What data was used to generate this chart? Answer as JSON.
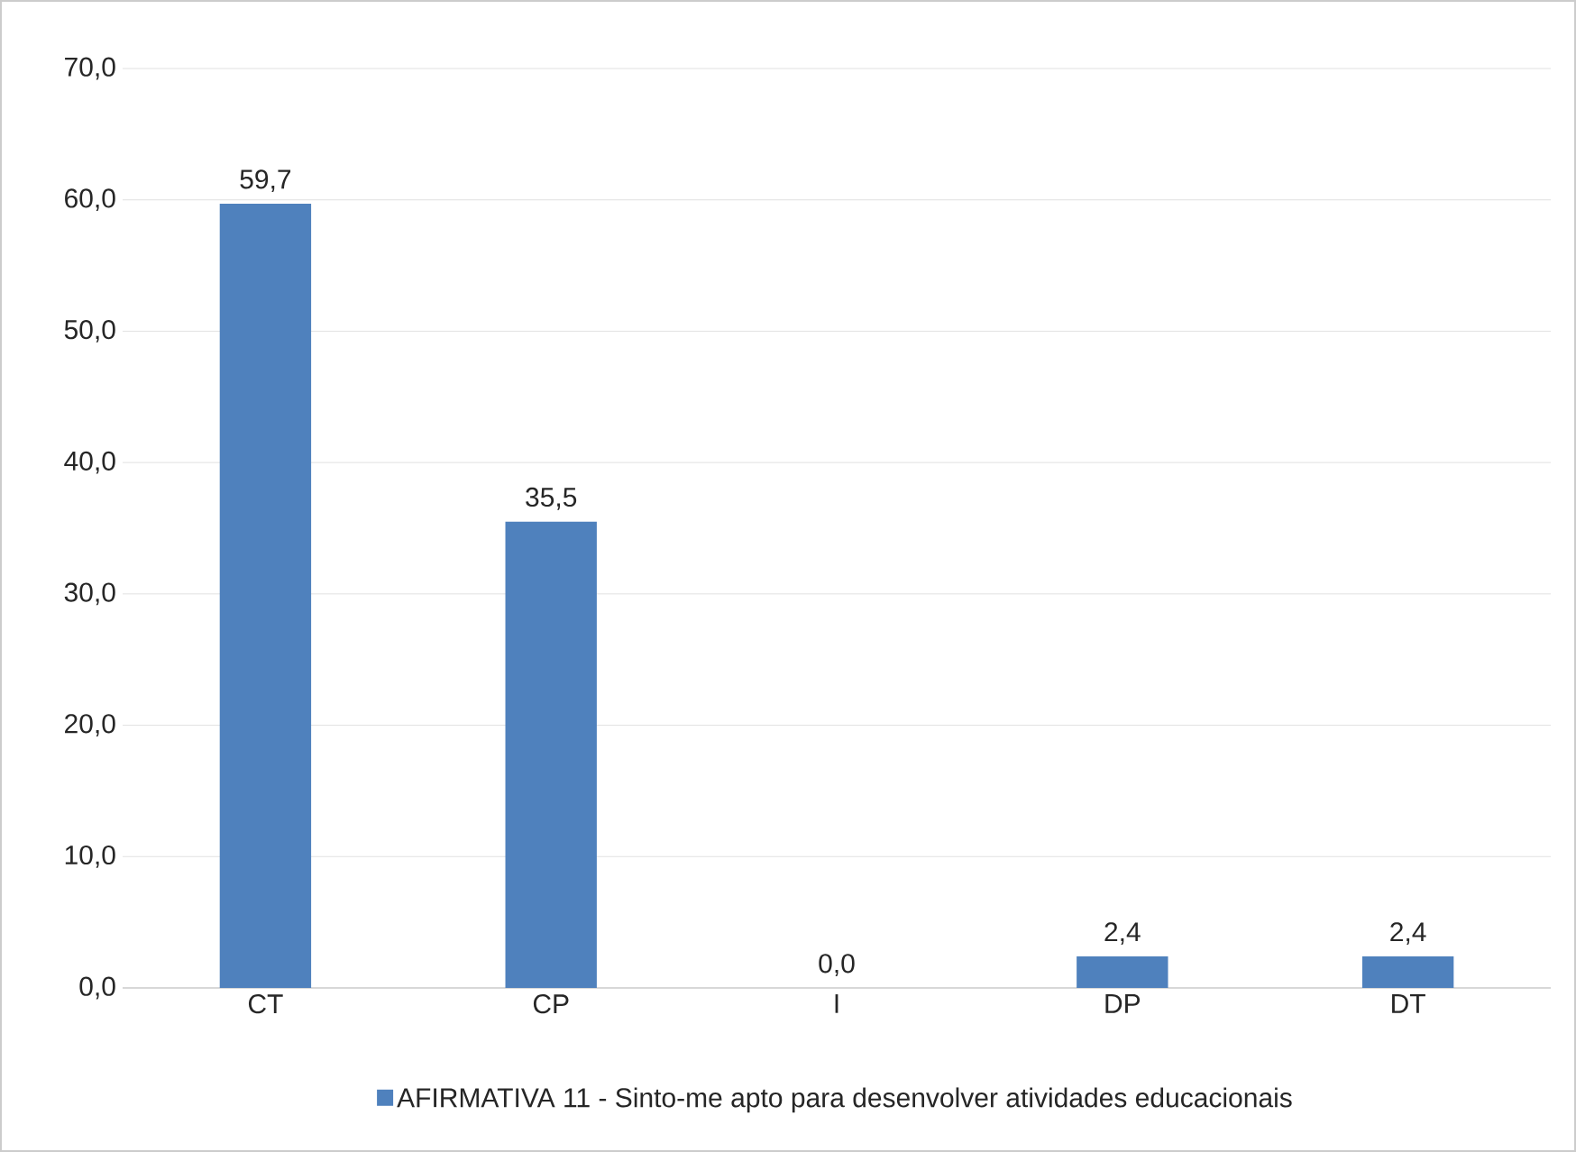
{
  "chart_data": {
    "type": "bar",
    "categories": [
      "CT",
      "CP",
      "I",
      "DP",
      "DT"
    ],
    "series": [
      {
        "name": "AFIRMATIVA 11 - Sinto-me apto para desenvolver atividades educacionais",
        "color": "#4f81bd",
        "values": [
          59.7,
          35.5,
          0.0,
          2.4,
          2.4
        ],
        "value_labels": [
          "59,7",
          "35,5",
          "0,0",
          "2,4",
          "2,4"
        ]
      }
    ],
    "ylim": [
      0,
      70
    ],
    "yticks": [
      {
        "value": 0,
        "label": "0,0"
      },
      {
        "value": 10,
        "label": "10,0"
      },
      {
        "value": 20,
        "label": "20,0"
      },
      {
        "value": 30,
        "label": "30,0"
      },
      {
        "value": 40,
        "label": "40,0"
      },
      {
        "value": 50,
        "label": "50,0"
      },
      {
        "value": 60,
        "label": "60,0"
      },
      {
        "value": 70,
        "label": "70,0"
      }
    ],
    "grid": "y",
    "legend": "bottom"
  }
}
